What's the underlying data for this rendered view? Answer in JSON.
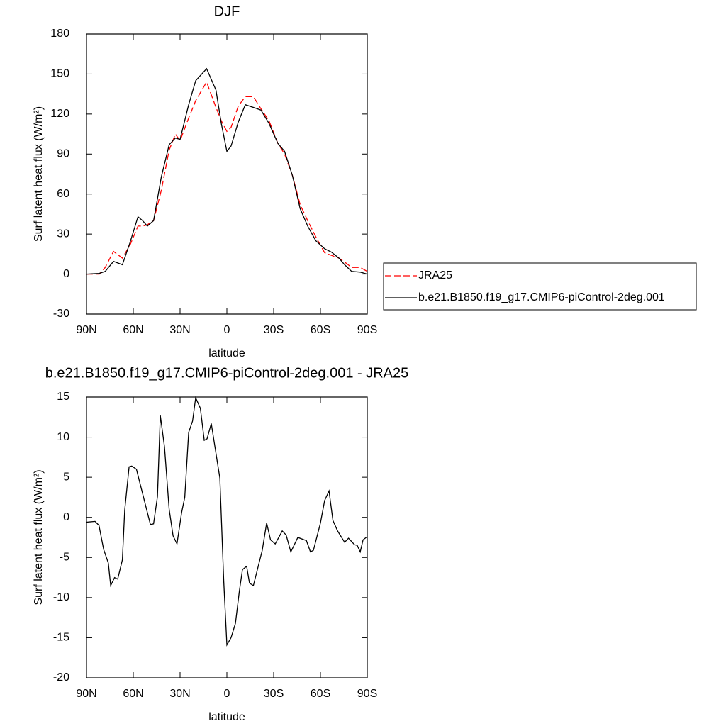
{
  "chart_data": [
    {
      "type": "line",
      "title": "DJF",
      "xlabel": "latitude",
      "ylabel": "Surf latent heat flux (W/m²)",
      "x": [
        90,
        81.8,
        78,
        72.7,
        67,
        62,
        57,
        54,
        51,
        47,
        42,
        37,
        33,
        30,
        24.5,
        20,
        13,
        7,
        3.6,
        0,
        -2.7,
        -7.3,
        -11.8,
        -17,
        -21.8,
        -27,
        -32.7,
        -37,
        -42,
        -47,
        -51.8,
        -57,
        -62.7,
        -67,
        -71.8,
        -75.5,
        -80,
        -85.5,
        -90
      ],
      "series": [
        {
          "name": "JRA25",
          "color": "#ff0000",
          "dash": true,
          "values": [
            0,
            0,
            5,
            17,
            12,
            22,
            36,
            36,
            37,
            40,
            63,
            93,
            105,
            100,
            117,
            130,
            144,
            125,
            115,
            107,
            110,
            126,
            133,
            133,
            124,
            115,
            98,
            90,
            74,
            52,
            40,
            28,
            16,
            14,
            12,
            9,
            5,
            5,
            2
          ]
        },
        {
          "name": "b.e21.B1850.f19_g17.CMIP6-piControl-2deg.001",
          "color": "#000000",
          "dash": false,
          "values": [
            0,
            0.5,
            2,
            9.5,
            7,
            24,
            43,
            40,
            36,
            40,
            73,
            97,
            102,
            101,
            127,
            145,
            154,
            138,
            113,
            92,
            96,
            114,
            127,
            125,
            123,
            113,
            98,
            92,
            74,
            49,
            36,
            25,
            19,
            16.5,
            12,
            7,
            2,
            1.5,
            0
          ]
        }
      ],
      "xlim": [
        90,
        -90
      ],
      "xticks": [
        {
          "value": 90,
          "label": "90N"
        },
        {
          "value": 60,
          "label": "60N"
        },
        {
          "value": 30,
          "label": "30N"
        },
        0,
        {
          "value": -30,
          "label": "30S"
        },
        {
          "value": -60,
          "label": "60S"
        },
        {
          "value": -90,
          "label": "90S"
        }
      ],
      "ylim": [
        -30,
        180
      ],
      "yticks": [
        -30,
        0,
        30,
        60,
        90,
        120,
        150,
        180
      ],
      "legend": "right"
    },
    {
      "type": "line",
      "title": "b.e21.B1850.f19_g17.CMIP6-piControl-2deg.001 - JRA25",
      "xlabel": "latitude",
      "ylabel": "Surf latent heat flux (W/m²)",
      "x": [
        90,
        84.5,
        82,
        79,
        76,
        74.5,
        72,
        70,
        67,
        65.5,
        62.7,
        61,
        58,
        49,
        47,
        44.5,
        42.7,
        40,
        37,
        34.5,
        32,
        29,
        27,
        24.5,
        22,
        20,
        17,
        14.5,
        12.7,
        10,
        4.5,
        2,
        0,
        -2.7,
        -5.5,
        -8,
        -10,
        -12.7,
        -14.5,
        -17,
        -22.7,
        -25.5,
        -28,
        -31,
        -35.5,
        -38,
        -41,
        -45.5,
        -51,
        -53.6,
        -55.5,
        -60,
        -62.7,
        -65.5,
        -68,
        -71,
        -75.5,
        -78,
        -81.8,
        -83.6,
        -85.5,
        -87.3,
        -90
      ],
      "values": [
        -0.6,
        -0.5,
        -1,
        -4,
        -5.7,
        -8.5,
        -7.5,
        -7.7,
        -5.3,
        0.9,
        6.3,
        6.4,
        6,
        -0.9,
        -0.8,
        2.6,
        12.7,
        8.8,
        1,
        -2.3,
        -3.3,
        0.6,
        2.5,
        10.6,
        12,
        14.9,
        13.6,
        9.6,
        9.8,
        11.7,
        4.9,
        -8,
        -15.9,
        -15,
        -13.2,
        -9.2,
        -6.5,
        -6.1,
        -8.2,
        -8.5,
        -4.1,
        -0.7,
        -2.8,
        -3.3,
        -1.7,
        -2.2,
        -4.3,
        -2.5,
        -2.9,
        -4.3,
        -4.1,
        -0.7,
        2.1,
        3.3,
        -0.4,
        -1.7,
        -3.1,
        -2.6,
        -3.4,
        -3.5,
        -4.3,
        -2.8,
        -2.4
      ],
      "color": "#000000",
      "xlim": [
        90,
        -90
      ],
      "xticks": [
        {
          "value": 90,
          "label": "90N"
        },
        {
          "value": 60,
          "label": "60N"
        },
        {
          "value": 30,
          "label": "30N"
        },
        0,
        {
          "value": -30,
          "label": "30S"
        },
        {
          "value": -60,
          "label": "60S"
        },
        {
          "value": -90,
          "label": "90S"
        }
      ],
      "ylim": [
        -20,
        15
      ],
      "yticks": [
        -20,
        -15,
        -10,
        -5,
        0,
        5,
        10,
        15
      ]
    }
  ]
}
